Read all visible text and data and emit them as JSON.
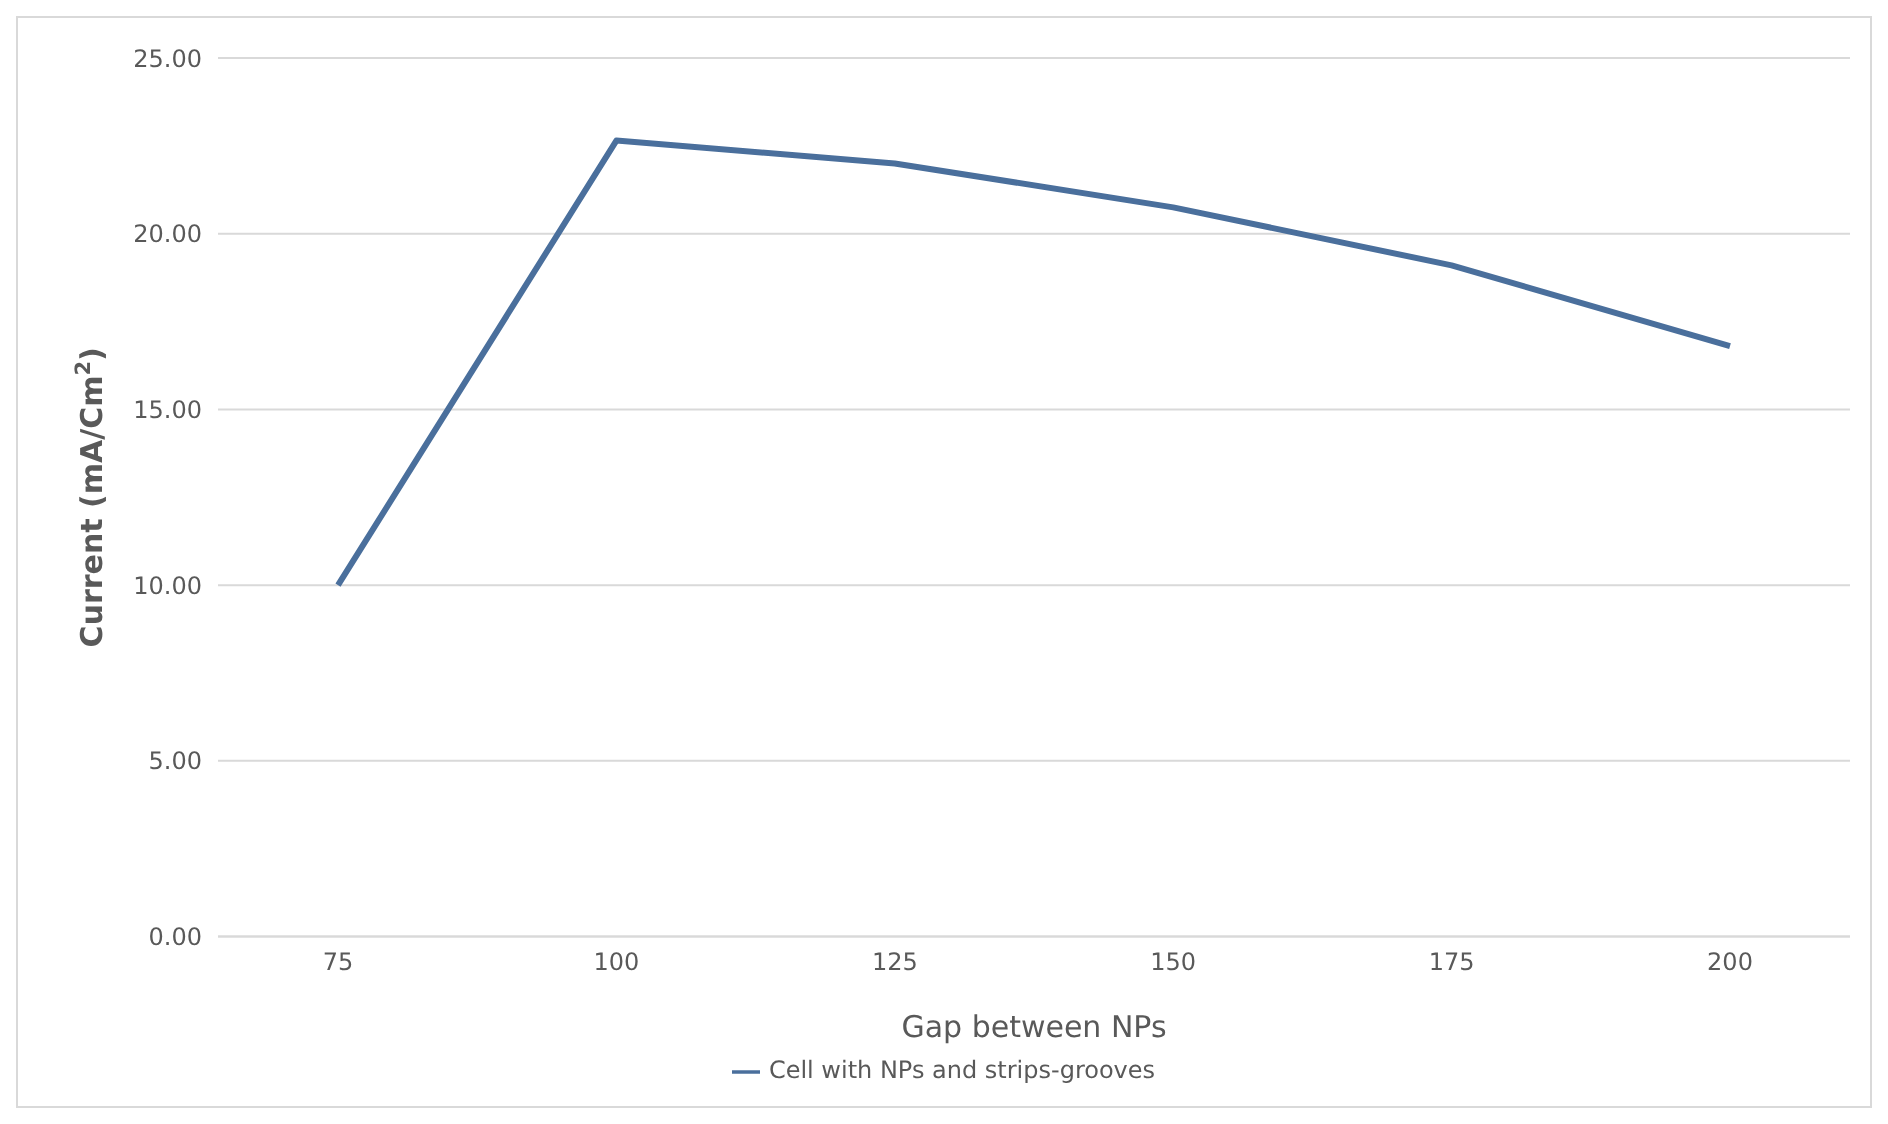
{
  "chart_data": {
    "type": "line",
    "xlabel": "Gap between NPs",
    "ylabel": "Current (mA/Cm$^{2}$)",
    "categories": [
      "75",
      "100",
      "125",
      "150",
      "175",
      "200"
    ],
    "series": [
      {
        "name": "Cell with NPs  and strips-grooves",
        "color": "#4a6f9c",
        "values": [
          10.0,
          22.65,
          22.0,
          20.75,
          19.1,
          16.8
        ]
      }
    ],
    "ylim": [
      0,
      25
    ],
    "yticks": [
      {
        "value": 0,
        "label": "0.00"
      },
      {
        "value": 5,
        "label": "5.00"
      },
      {
        "value": 10,
        "label": "10.00"
      },
      {
        "value": 15,
        "label": "15.00"
      },
      {
        "value": 20,
        "label": "20.00"
      },
      {
        "value": 25,
        "label": "25.00"
      }
    ],
    "grid": "y",
    "legend": "bottom",
    "marker": "none",
    "line_style": "solid"
  }
}
